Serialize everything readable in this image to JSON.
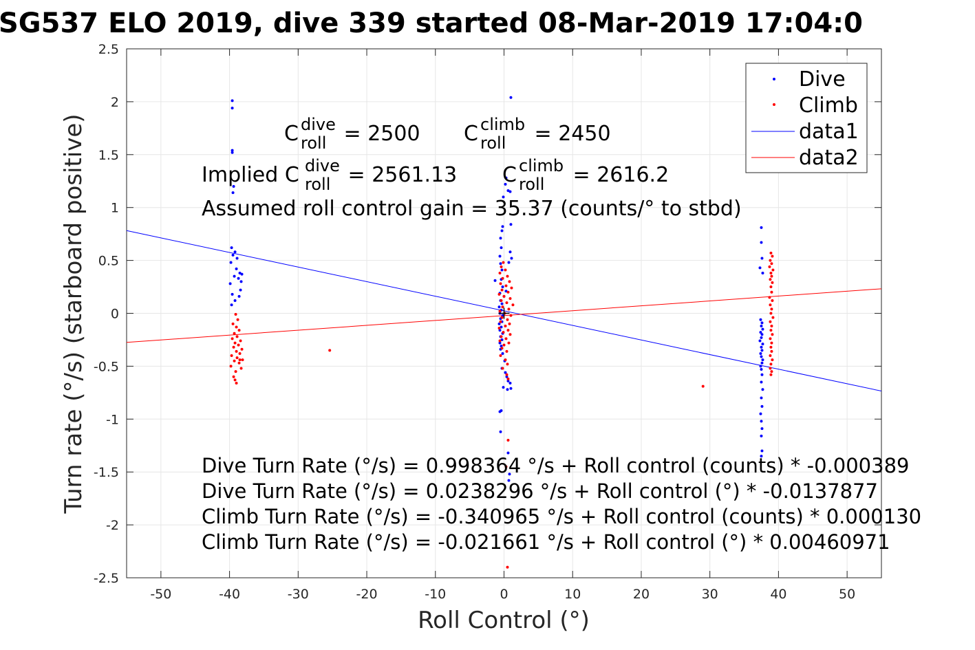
{
  "chart_data": {
    "type": "scatter",
    "title": "SG537 ELO 2019, dive 339 started 08-Mar-2019 17:04:0",
    "xlabel": "Roll Control (°)",
    "ylabel": "Turn rate (°/s) (starboard positive)",
    "xlim": [
      -55,
      55
    ],
    "ylim": [
      -2.5,
      2.5
    ],
    "xticks": [
      -50,
      -40,
      -30,
      -20,
      -10,
      0,
      10,
      20,
      30,
      40,
      50
    ],
    "yticks": [
      -2.5,
      -2,
      -1.5,
      -1,
      -0.5,
      0,
      0.5,
      1,
      1.5,
      2,
      2.5
    ],
    "xtick_labels": [
      "-50",
      "-40",
      "-30",
      "-20",
      "-10",
      "0",
      "10",
      "20",
      "30",
      "40",
      "50"
    ],
    "ytick_labels": [
      "-2.5",
      "-2",
      "-1.5",
      "-1",
      "-0.5",
      "0",
      "0.5",
      "1",
      "1.5",
      "2",
      "2.5"
    ],
    "grid": true,
    "legend_position": "top-right",
    "legend": [
      "Dive",
      "Climb",
      "data1",
      "data2"
    ],
    "series": [
      {
        "name": "Dive",
        "kind": "points",
        "color": "#0000ff",
        "points": [
          [
            -39.6,
            2.01
          ],
          [
            -39.6,
            1.94
          ],
          [
            -39.6,
            1.54
          ],
          [
            -39.6,
            1.52
          ],
          [
            -39.5,
            1.14
          ],
          [
            -39.4,
            1.2
          ],
          [
            -39.7,
            0.62
          ],
          [
            -39.2,
            0.58
          ],
          [
            -39.5,
            0.55
          ],
          [
            -38.9,
            0.52
          ],
          [
            -39.8,
            0.48
          ],
          [
            -39.0,
            0.42
          ],
          [
            -38.5,
            0.38
          ],
          [
            -39.3,
            0.35
          ],
          [
            -38.7,
            0.33
          ],
          [
            -38.2,
            0.37
          ],
          [
            -39.9,
            0.28
          ],
          [
            -38.4,
            0.22
          ],
          [
            -39.6,
            0.18
          ],
          [
            -38.6,
            0.16
          ],
          [
            -39.2,
            0.12
          ],
          [
            -39.7,
            0.08
          ],
          [
            -38.3,
            0.3
          ],
          [
            1.0,
            2.04
          ],
          [
            0.3,
            1.28
          ],
          [
            0.2,
            1.22
          ],
          [
            0.6,
            1.16
          ],
          [
            -0.1,
            1.1
          ],
          [
            0.9,
            1.15
          ],
          [
            -0.2,
            0.82
          ],
          [
            -0.3,
            0.78
          ],
          [
            1.0,
            0.84
          ],
          [
            -0.5,
            0.71
          ],
          [
            -0.4,
            0.62
          ],
          [
            -0.6,
            0.54
          ],
          [
            -0.5,
            0.47
          ],
          [
            -0.3,
            0.41
          ],
          [
            -1.3,
            0.31
          ],
          [
            -0.4,
            0.32
          ],
          [
            0.9,
            0.58
          ],
          [
            1.1,
            0.52
          ],
          [
            0.7,
            0.48
          ],
          [
            -0.2,
            0.25
          ],
          [
            0.3,
            0.21
          ],
          [
            -0.6,
            0.19
          ],
          [
            0.0,
            0.16
          ],
          [
            -0.5,
            0.12
          ],
          [
            -0.3,
            0.09
          ],
          [
            -0.7,
            0.06
          ],
          [
            -0.4,
            0.03
          ],
          [
            -0.6,
            0.0
          ],
          [
            -0.2,
            -0.02
          ],
          [
            -0.5,
            -0.05
          ],
          [
            -0.3,
            -0.08
          ],
          [
            -0.7,
            -0.1
          ],
          [
            -0.4,
            -0.13
          ],
          [
            -0.6,
            -0.16
          ],
          [
            -0.2,
            -0.19
          ],
          [
            -0.5,
            -0.22
          ],
          [
            -0.3,
            -0.25
          ],
          [
            -0.6,
            -0.28
          ],
          [
            -0.4,
            -0.31
          ],
          [
            -0.5,
            -0.34
          ],
          [
            -0.2,
            -0.38
          ],
          [
            0.1,
            -0.45
          ],
          [
            -0.3,
            -0.52
          ],
          [
            0.2,
            -0.56
          ],
          [
            0.4,
            -0.6
          ],
          [
            0.6,
            -0.64
          ],
          [
            0.9,
            -0.66
          ],
          [
            -0.1,
            -0.7
          ],
          [
            0.5,
            -0.72
          ],
          [
            1.0,
            -0.71
          ],
          [
            -0.6,
            -0.93
          ],
          [
            -0.4,
            -0.92
          ],
          [
            -0.5,
            -1.12
          ],
          [
            0.6,
            -1.32
          ],
          [
            0.8,
            -1.52
          ],
          [
            0.7,
            -1.58
          ],
          [
            37.5,
            0.81
          ],
          [
            37.5,
            0.67
          ],
          [
            37.6,
            0.52
          ],
          [
            37.3,
            0.43
          ],
          [
            37.7,
            0.38
          ],
          [
            37.4,
            -0.06
          ],
          [
            37.6,
            -0.09
          ],
          [
            37.5,
            -0.12
          ],
          [
            37.7,
            -0.15
          ],
          [
            37.4,
            -0.18
          ],
          [
            37.6,
            -0.2
          ],
          [
            37.5,
            -0.23
          ],
          [
            37.3,
            -0.26
          ],
          [
            37.7,
            -0.29
          ],
          [
            37.5,
            -0.32
          ],
          [
            37.6,
            -0.35
          ],
          [
            37.4,
            -0.38
          ],
          [
            37.5,
            -0.41
          ],
          [
            37.7,
            -0.44
          ],
          [
            37.6,
            -0.47
          ],
          [
            37.4,
            -0.5
          ],
          [
            37.5,
            -0.53
          ],
          [
            37.6,
            -0.58
          ],
          [
            37.5,
            -0.65
          ],
          [
            37.7,
            -0.72
          ],
          [
            37.5,
            -0.8
          ],
          [
            37.6,
            -0.88
          ],
          [
            37.4,
            -0.95
          ],
          [
            37.5,
            -1.02
          ],
          [
            37.6,
            -1.09
          ],
          [
            37.5,
            -1.16
          ],
          [
            37.6,
            -1.3
          ],
          [
            37.5,
            -1.35
          ]
        ]
      },
      {
        "name": "Climb",
        "kind": "points",
        "color": "#ff0000",
        "points": [
          [
            -39.1,
            -0.01
          ],
          [
            -38.8,
            -0.06
          ],
          [
            -39.5,
            -0.1
          ],
          [
            -39.0,
            -0.13
          ],
          [
            -38.6,
            -0.16
          ],
          [
            -39.3,
            -0.19
          ],
          [
            -38.9,
            -0.22
          ],
          [
            -39.6,
            -0.24
          ],
          [
            -38.4,
            -0.26
          ],
          [
            -39.2,
            -0.28
          ],
          [
            -38.7,
            -0.3
          ],
          [
            -39.4,
            -0.32
          ],
          [
            -38.2,
            -0.34
          ],
          [
            -39.0,
            -0.36
          ],
          [
            -38.5,
            -0.38
          ],
          [
            -39.7,
            -0.4
          ],
          [
            -38.9,
            -0.42
          ],
          [
            -38.1,
            -0.44
          ],
          [
            -39.3,
            -0.45
          ],
          [
            -38.6,
            -0.47
          ],
          [
            -39.8,
            -0.5
          ],
          [
            -38.3,
            -0.52
          ],
          [
            -39.1,
            -0.55
          ],
          [
            -39.4,
            -0.6
          ],
          [
            -39.2,
            -0.63
          ],
          [
            -39.0,
            -0.66
          ],
          [
            -38.5,
            -0.44
          ],
          [
            -25.4,
            -0.35
          ],
          [
            -0.1,
            0.48
          ],
          [
            -0.4,
            0.44
          ],
          [
            0.2,
            0.41
          ],
          [
            -0.6,
            0.38
          ],
          [
            0.5,
            0.35
          ],
          [
            -0.2,
            0.33
          ],
          [
            0.8,
            0.3
          ],
          [
            -0.5,
            0.28
          ],
          [
            0.3,
            0.26
          ],
          [
            1.1,
            0.24
          ],
          [
            -0.3,
            0.22
          ],
          [
            0.6,
            0.2
          ],
          [
            -0.7,
            0.18
          ],
          [
            0.0,
            0.16
          ],
          [
            0.9,
            0.14
          ],
          [
            -0.4,
            0.12
          ],
          [
            0.4,
            0.1
          ],
          [
            1.3,
            0.08
          ],
          [
            -0.2,
            0.06
          ],
          [
            0.7,
            0.04
          ],
          [
            -0.6,
            0.02
          ],
          [
            0.1,
            0.0
          ],
          [
            1.0,
            -0.02
          ],
          [
            -0.3,
            -0.04
          ],
          [
            0.5,
            -0.06
          ],
          [
            -0.5,
            -0.08
          ],
          [
            0.8,
            -0.1
          ],
          [
            0.2,
            -0.12
          ],
          [
            -0.7,
            -0.14
          ],
          [
            0.6,
            -0.16
          ],
          [
            -0.1,
            -0.18
          ],
          [
            0.9,
            -0.2
          ],
          [
            -0.4,
            -0.22
          ],
          [
            0.3,
            -0.24
          ],
          [
            -0.6,
            -0.26
          ],
          [
            0.7,
            -0.28
          ],
          [
            0.0,
            -0.3
          ],
          [
            -0.3,
            -0.33
          ],
          [
            0.4,
            -0.36
          ],
          [
            -0.5,
            -0.4
          ],
          [
            0.2,
            -0.44
          ],
          [
            0.5,
            -0.48
          ],
          [
            -0.2,
            -0.52
          ],
          [
            0.4,
            -0.58
          ],
          [
            0.6,
            -0.62
          ],
          [
            0.6,
            -1.2
          ],
          [
            0.3,
            -1.45
          ],
          [
            0.5,
            -2.4
          ],
          [
            29.0,
            -0.69
          ],
          [
            38.9,
            0.57
          ],
          [
            39.1,
            0.54
          ],
          [
            38.8,
            0.5
          ],
          [
            39.0,
            0.47
          ],
          [
            38.7,
            0.44
          ],
          [
            39.2,
            0.41
          ],
          [
            38.9,
            0.38
          ],
          [
            39.0,
            0.35
          ],
          [
            38.8,
            0.32
          ],
          [
            39.1,
            0.29
          ],
          [
            38.9,
            0.25
          ],
          [
            39.0,
            0.2
          ],
          [
            38.7,
            0.15
          ],
          [
            39.1,
            0.12
          ],
          [
            38.8,
            0.08
          ],
          [
            39.0,
            0.04
          ],
          [
            38.9,
            0.0
          ],
          [
            39.2,
            -0.04
          ],
          [
            38.8,
            -0.08
          ],
          [
            39.0,
            -0.12
          ],
          [
            38.9,
            -0.16
          ],
          [
            39.1,
            -0.2
          ],
          [
            38.8,
            -0.24
          ],
          [
            39.0,
            -0.28
          ],
          [
            38.9,
            -0.32
          ],
          [
            39.0,
            -0.36
          ],
          [
            38.8,
            -0.4
          ],
          [
            39.1,
            -0.44
          ],
          [
            38.9,
            -0.48
          ],
          [
            38.8,
            -0.52
          ],
          [
            39.0,
            -0.55
          ],
          [
            38.9,
            -0.58
          ]
        ]
      },
      {
        "name": "data1",
        "kind": "line",
        "color": "#0000ff",
        "x": [
          -55,
          55
        ],
        "y": [
          0.782,
          -0.735
        ]
      },
      {
        "name": "data2",
        "kind": "line",
        "color": "#ff0000",
        "x": [
          -55,
          55
        ],
        "y": [
          -0.275,
          0.232
        ]
      }
    ],
    "annotations": {
      "c_dive_prefix": "C",
      "c_dive_sup": "dive",
      "c_dive_sub": "roll",
      "c_dive_value": " = 2500",
      "c_climb_prefix": "C",
      "c_climb_sup": "climb",
      "c_climb_sub": "roll",
      "c_climb_value": " = 2450",
      "implied_prefix": "Implied C",
      "implied_dive_sup": "dive",
      "implied_dive_sub": "roll",
      "implied_dive_value": " = 2561.13",
      "implied_climb_prefix": "C",
      "implied_climb_sup": "climb",
      "implied_climb_sub": "roll",
      "implied_climb_value": " = 2616.2",
      "gain": "Assumed roll control gain = 35.37 (counts/° to stbd)",
      "fit_lines": [
        "Dive Turn Rate (°/s) = 0.998364 °/s + Roll control (counts) * -0.000389",
        "Dive Turn Rate (°/s) = 0.0238296 °/s + Roll control (°) * -0.0137877",
        "Climb Turn Rate (°/s) = -0.340965 °/s + Roll control (counts) * 0.000130",
        "Climb Turn Rate (°/s) = -0.021661 °/s + Roll control (°) * 0.00460971"
      ]
    }
  }
}
